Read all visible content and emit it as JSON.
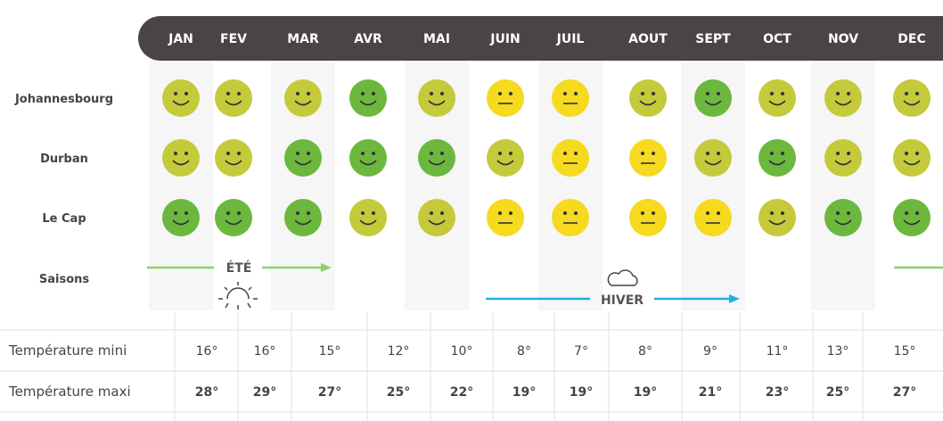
{
  "months": [
    "JAN",
    "FEV",
    "MAR",
    "AVR",
    "MAI",
    "JUIN",
    "JUIL",
    "AOUT",
    "SEPT",
    "OCT",
    "NOV",
    "DEC"
  ],
  "faces": [
    {
      "color": "#6cb83e",
      "mouth": "smile"
    },
    {
      "color": "#c4ca3a",
      "mouth": "smile"
    },
    {
      "color": "#f5da1f",
      "mouth": "flat"
    }
  ],
  "cities": [
    {
      "name": "Johannesbourg",
      "ratings": [
        1,
        1,
        1,
        0,
        1,
        2,
        2,
        1,
        0,
        1,
        1,
        1
      ]
    },
    {
      "name": "Durban",
      "ratings": [
        1,
        1,
        0,
        0,
        0,
        1,
        2,
        2,
        1,
        0,
        1,
        1
      ]
    },
    {
      "name": "Le Cap",
      "ratings": [
        0,
        0,
        0,
        1,
        1,
        2,
        2,
        2,
        2,
        1,
        0,
        0
      ]
    }
  ],
  "seasons": {
    "label": "Saisons",
    "summer": "ÉTÉ",
    "winter": "HIVER"
  },
  "temperatures": [
    {
      "label": "Température mini",
      "values": [
        "16°",
        "16°",
        "15°",
        "12°",
        "10°",
        "8°",
        "7°",
        "8°",
        "9°",
        "11°",
        "13°",
        "15°"
      ]
    },
    {
      "label": "Température maxi",
      "values": [
        "28°",
        "29°",
        "27°",
        "25°",
        "22°",
        "19°",
        "19°",
        "19°",
        "21°",
        "23°",
        "25°",
        "27°"
      ]
    }
  ]
}
